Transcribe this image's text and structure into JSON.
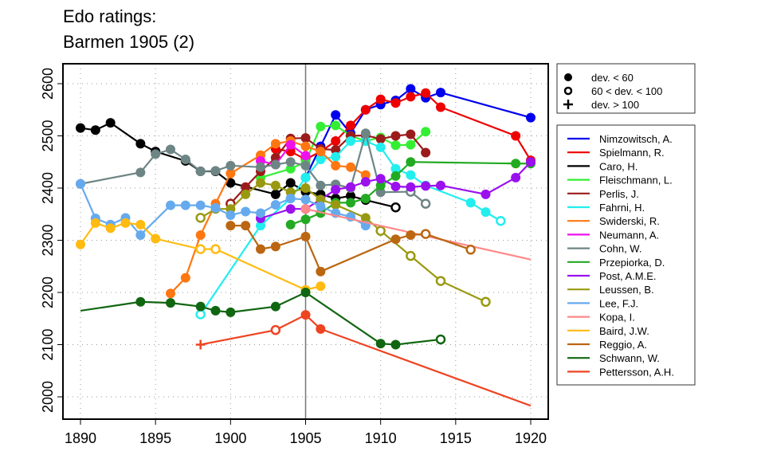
{
  "chart_data": {
    "type": "line",
    "title": [
      "Edo ratings:",
      "Barmen 1905 (2)"
    ],
    "xlabel": "",
    "ylabel": "",
    "xlim": [
      1889,
      1921.2
    ],
    "ylim": [
      1975,
      2650
    ],
    "xticks": [
      1890,
      1895,
      1900,
      1905,
      1910,
      1915,
      1920
    ],
    "yticks": [
      2000,
      2100,
      2200,
      2300,
      2400,
      2500,
      2600
    ],
    "grid": true,
    "event_year": 1905,
    "marker_legend": [
      {
        "symbol": "filled",
        "label": "dev. < 60"
      },
      {
        "symbol": "open",
        "label": "60 < dev. < 100"
      },
      {
        "symbol": "plus",
        "label": "dev. > 100"
      }
    ],
    "legend_position": "right",
    "series": [
      {
        "name": "Nimzowitsch, A.",
        "color": "#0000ee",
        "points": [
          [
            1905,
            2420,
            "f"
          ],
          [
            1906,
            2480,
            "f"
          ],
          [
            1907,
            2540,
            "f"
          ],
          [
            1908,
            2505,
            "f"
          ],
          [
            1909,
            2550,
            "f"
          ],
          [
            1910,
            2560,
            "f"
          ],
          [
            1911,
            2568,
            "f"
          ],
          [
            1912,
            2590,
            "f"
          ],
          [
            1913,
            2573,
            "f"
          ],
          [
            1914,
            2583,
            "f"
          ],
          [
            1920,
            2535,
            "f"
          ]
        ]
      },
      {
        "name": "Spielmann, R.",
        "color": "#ee0000",
        "points": [
          [
            1903,
            2475,
            "f"
          ],
          [
            1904,
            2470,
            "f"
          ],
          [
            1905,
            2455,
            "f"
          ],
          [
            1906,
            2470,
            "f"
          ],
          [
            1907,
            2490,
            "f"
          ],
          [
            1908,
            2520,
            "f"
          ],
          [
            1909,
            2550,
            "f"
          ],
          [
            1910,
            2570,
            "f"
          ],
          [
            1911,
            2563,
            "f"
          ],
          [
            1912,
            2575,
            "f"
          ],
          [
            1913,
            2582,
            "f"
          ],
          [
            1914,
            2555,
            "f"
          ],
          [
            1919,
            2500,
            "f"
          ],
          [
            1920,
            2453,
            "f"
          ]
        ]
      },
      {
        "name": "Caro, H.",
        "color": "#000000",
        "points": [
          [
            1890,
            2515,
            "f"
          ],
          [
            1891,
            2511,
            "f"
          ],
          [
            1892,
            2525,
            "f"
          ],
          [
            1894,
            2485,
            "f"
          ],
          [
            1895,
            2470,
            "f"
          ],
          [
            1897,
            2452,
            "f"
          ],
          [
            1898,
            2432,
            "f"
          ],
          [
            1899,
            2432,
            "f"
          ],
          [
            1900,
            2410,
            "f"
          ],
          [
            1903,
            2388,
            "f"
          ],
          [
            1904,
            2410,
            "f"
          ],
          [
            1905,
            2393,
            "f"
          ],
          [
            1906,
            2388,
            "f"
          ],
          [
            1907,
            2380,
            "f"
          ],
          [
            1908,
            2385,
            "f"
          ],
          [
            1909,
            2377,
            "f"
          ],
          [
            1911,
            2363,
            "o"
          ]
        ]
      },
      {
        "name": "Fleischmann, L.",
        "color": "#33ee33",
        "points": [
          [
            1902,
            2420,
            "f"
          ],
          [
            1904,
            2437,
            "f"
          ],
          [
            1905,
            2450,
            "f"
          ],
          [
            1906,
            2518,
            "f"
          ],
          [
            1907,
            2520,
            "f"
          ],
          [
            1908,
            2500,
            "f"
          ],
          [
            1909,
            2490,
            "f"
          ],
          [
            1910,
            2497,
            "f"
          ],
          [
            1911,
            2482,
            "f"
          ],
          [
            1912,
            2483,
            "f"
          ],
          [
            1913,
            2508,
            "f"
          ]
        ]
      },
      {
        "name": "Perlis, J.",
        "color": "#9b1b1b",
        "points": [
          [
            1900,
            2370,
            "o"
          ],
          [
            1901,
            2402,
            "f"
          ],
          [
            1902,
            2432,
            "f"
          ],
          [
            1903,
            2458,
            "f"
          ],
          [
            1904,
            2495,
            "f"
          ],
          [
            1905,
            2496,
            "f"
          ],
          [
            1906,
            2475,
            "f"
          ],
          [
            1907,
            2473,
            "f"
          ],
          [
            1908,
            2500,
            "f"
          ],
          [
            1909,
            2501,
            "f"
          ],
          [
            1910,
            2494,
            "f"
          ],
          [
            1911,
            2500,
            "f"
          ],
          [
            1912,
            2503,
            "f"
          ],
          [
            1913,
            2468,
            "f"
          ]
        ]
      },
      {
        "name": "Fahrni, H.",
        "color": "#22eeee",
        "points": [
          [
            1898,
            2158,
            "o"
          ],
          [
            1902,
            2328,
            "f"
          ],
          [
            1904,
            2380,
            "f"
          ],
          [
            1905,
            2420,
            "f"
          ],
          [
            1906,
            2455,
            "f"
          ],
          [
            1907,
            2460,
            "f"
          ],
          [
            1908,
            2490,
            "f"
          ],
          [
            1909,
            2490,
            "f"
          ],
          [
            1910,
            2478,
            "f"
          ],
          [
            1911,
            2437,
            "f"
          ],
          [
            1912,
            2425,
            "f"
          ],
          [
            1913,
            2405,
            "f"
          ],
          [
            1916,
            2372,
            "f"
          ],
          [
            1917,
            2354,
            "f"
          ],
          [
            1918,
            2337,
            "o"
          ]
        ]
      },
      {
        "name": "Swiderski, R.",
        "color": "#ff7711",
        "points": [
          [
            1896,
            2198,
            "f"
          ],
          [
            1897,
            2228,
            "f"
          ],
          [
            1898,
            2310,
            "f"
          ],
          [
            1899,
            2370,
            "f"
          ],
          [
            1900,
            2428,
            "f"
          ],
          [
            1902,
            2463,
            "f"
          ],
          [
            1903,
            2485,
            "f"
          ],
          [
            1904,
            2490,
            "f"
          ],
          [
            1905,
            2480,
            "f"
          ],
          [
            1906,
            2470,
            "f"
          ],
          [
            1907,
            2443,
            "f"
          ],
          [
            1908,
            2440,
            "f"
          ],
          [
            1909,
            2425,
            "f"
          ]
        ]
      },
      {
        "name": "Neumann, A.",
        "color": "#ee11ee",
        "points": [
          [
            1902,
            2452,
            "f"
          ],
          [
            1903,
            2445,
            "f"
          ],
          [
            1904,
            2483,
            "f"
          ],
          [
            1905,
            2462,
            "f"
          ]
        ]
      },
      {
        "name": "Cohn, W.",
        "color": "#6e8585",
        "points": [
          [
            1890,
            2408,
            "f"
          ],
          [
            1894,
            2430,
            "f"
          ],
          [
            1895,
            2465,
            "f"
          ],
          [
            1896,
            2474,
            "f"
          ],
          [
            1897,
            2455,
            "f"
          ],
          [
            1898,
            2432,
            "f"
          ],
          [
            1899,
            2433,
            "f"
          ],
          [
            1900,
            2443,
            "f"
          ],
          [
            1902,
            2440,
            "f"
          ],
          [
            1903,
            2445,
            "f"
          ],
          [
            1904,
            2450,
            "f"
          ],
          [
            1905,
            2443,
            "f"
          ],
          [
            1906,
            2405,
            "f"
          ],
          [
            1907,
            2407,
            "f"
          ],
          [
            1908,
            2400,
            "f"
          ],
          [
            1909,
            2505,
            "f"
          ],
          [
            1910,
            2392,
            "f"
          ],
          [
            1912,
            2393,
            "o"
          ],
          [
            1913,
            2370,
            "o"
          ]
        ]
      },
      {
        "name": "Przepiorka, D.",
        "color": "#22aa22",
        "points": [
          [
            1904,
            2330,
            "f"
          ],
          [
            1905,
            2340,
            "f"
          ],
          [
            1906,
            2352,
            "f"
          ],
          [
            1907,
            2372,
            "f"
          ],
          [
            1908,
            2372,
            "f"
          ],
          [
            1909,
            2380,
            "f"
          ],
          [
            1910,
            2405,
            "f"
          ],
          [
            1911,
            2423,
            "f"
          ],
          [
            1912,
            2450,
            "f"
          ],
          [
            1919,
            2447,
            "f"
          ],
          [
            1920,
            2447,
            "f"
          ]
        ]
      },
      {
        "name": "Post, A.M.E.",
        "color": "#9a11ee",
        "points": [
          [
            1902,
            2342,
            "f"
          ],
          [
            1904,
            2360,
            "f"
          ],
          [
            1905,
            2360,
            "f"
          ],
          [
            1906,
            2378,
            "f"
          ],
          [
            1907,
            2397,
            "f"
          ],
          [
            1908,
            2402,
            "f"
          ],
          [
            1909,
            2412,
            "f"
          ],
          [
            1910,
            2418,
            "f"
          ],
          [
            1911,
            2403,
            "f"
          ],
          [
            1912,
            2402,
            "f"
          ],
          [
            1913,
            2404,
            "f"
          ],
          [
            1914,
            2405,
            "f"
          ],
          [
            1917,
            2388,
            "f"
          ],
          [
            1919,
            2420,
            "f"
          ],
          [
            1920,
            2450,
            "f"
          ]
        ]
      },
      {
        "name": "Leussen, B.",
        "color": "#999911",
        "points": [
          [
            1898,
            2343,
            "o"
          ],
          [
            1899,
            2360,
            "f"
          ],
          [
            1900,
            2360,
            "f"
          ],
          [
            1901,
            2388,
            "f"
          ],
          [
            1902,
            2410,
            "f"
          ],
          [
            1903,
            2405,
            "f"
          ],
          [
            1904,
            2392,
            "f"
          ],
          [
            1905,
            2400,
            "f"
          ],
          [
            1906,
            2378,
            "f"
          ],
          [
            1907,
            2368,
            "f"
          ],
          [
            1909,
            2343,
            "f"
          ],
          [
            1910,
            2318,
            "o"
          ],
          [
            1912,
            2270,
            "o"
          ],
          [
            1914,
            2222,
            "o"
          ],
          [
            1917,
            2182,
            "o"
          ]
        ]
      },
      {
        "name": "Lee, F.J.",
        "color": "#66aaee",
        "points": [
          [
            1890,
            2408,
            "f"
          ],
          [
            1891,
            2342,
            "f"
          ],
          [
            1892,
            2330,
            "f"
          ],
          [
            1893,
            2343,
            "f"
          ],
          [
            1894,
            2310,
            "f"
          ],
          [
            1896,
            2367,
            "f"
          ],
          [
            1897,
            2367,
            "f"
          ],
          [
            1898,
            2367,
            "f"
          ],
          [
            1899,
            2362,
            "f"
          ],
          [
            1900,
            2348,
            "f"
          ],
          [
            1901,
            2355,
            "f"
          ],
          [
            1902,
            2352,
            "f"
          ],
          [
            1903,
            2368,
            "f"
          ],
          [
            1904,
            2380,
            "f"
          ],
          [
            1905,
            2378,
            "f"
          ],
          [
            1906,
            2365,
            "f"
          ],
          [
            1907,
            2352,
            "f"
          ],
          [
            1908,
            2345,
            "f"
          ],
          [
            1909,
            2328,
            "f"
          ]
        ]
      },
      {
        "name": "Kopa, I.",
        "color": "#ff8888",
        "points": [
          [
            1905,
            2360,
            "f"
          ],
          [
            1920,
            2263,
            "n"
          ]
        ]
      },
      {
        "name": "Baird, J.W.",
        "color": "#ffbb11",
        "points": [
          [
            1890,
            2292,
            "f"
          ],
          [
            1891,
            2333,
            "f"
          ],
          [
            1892,
            2323,
            "f"
          ],
          [
            1893,
            2333,
            "f"
          ],
          [
            1894,
            2330,
            "f"
          ],
          [
            1895,
            2303,
            "f"
          ],
          [
            1898,
            2283,
            "o"
          ],
          [
            1899,
            2283,
            "o"
          ],
          [
            1905,
            2205,
            "f"
          ],
          [
            1906,
            2212,
            "f"
          ]
        ]
      },
      {
        "name": "Reggio, A.",
        "color": "#bb6611",
        "points": [
          [
            1900,
            2328,
            "f"
          ],
          [
            1901,
            2328,
            "f"
          ],
          [
            1902,
            2283,
            "f"
          ],
          [
            1903,
            2288,
            "f"
          ],
          [
            1905,
            2307,
            "f"
          ],
          [
            1906,
            2240,
            "f"
          ],
          [
            1911,
            2302,
            "f"
          ],
          [
            1912,
            2310,
            "f"
          ],
          [
            1913,
            2312,
            "o"
          ],
          [
            1916,
            2282,
            "o"
          ]
        ]
      },
      {
        "name": "Schwann, W.",
        "color": "#116611",
        "points": [
          [
            1890,
            2165,
            "n"
          ],
          [
            1894,
            2182,
            "f"
          ],
          [
            1896,
            2180,
            "f"
          ],
          [
            1898,
            2173,
            "f"
          ],
          [
            1899,
            2165,
            "f"
          ],
          [
            1900,
            2162,
            "f"
          ],
          [
            1903,
            2173,
            "f"
          ],
          [
            1905,
            2200,
            "f"
          ],
          [
            1910,
            2102,
            "f"
          ],
          [
            1911,
            2100,
            "f"
          ],
          [
            1914,
            2110,
            "o"
          ]
        ]
      },
      {
        "name": "Pettersson, A.H.",
        "color": "#ee4422",
        "points": [
          [
            1898,
            2100,
            "p"
          ],
          [
            1903,
            2128,
            "o"
          ],
          [
            1905,
            2157,
            "f"
          ],
          [
            1906,
            2130,
            "f"
          ],
          [
            1920,
            1983,
            "n"
          ]
        ]
      }
    ]
  }
}
